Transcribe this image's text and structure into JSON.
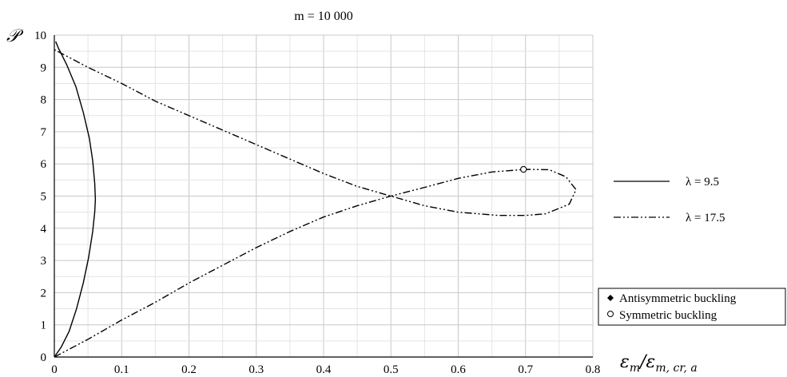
{
  "chart_data": {
    "type": "line",
    "title": "m = 10 000",
    "ylabel": "𝒫",
    "xlabel_main": "ε",
    "xlabel_sub1": "m",
    "xlabel_slash": "/ε",
    "xlabel_sub2": "m, cr, a",
    "xlim": [
      0,
      0.8
    ],
    "ylim": [
      0,
      10
    ],
    "xticks": [
      "0",
      "0.1",
      "0.2",
      "0.3",
      "0.4",
      "0.5",
      "0.6",
      "0.7",
      "0.8"
    ],
    "yticks": [
      "0",
      "1",
      "2",
      "3",
      "4",
      "5",
      "6",
      "7",
      "8",
      "9",
      "10"
    ],
    "grid": true,
    "series": [
      {
        "name": "λ = 9.5",
        "style": "solid",
        "points": [
          [
            0.0,
            0.0
          ],
          [
            0.01,
            0.3
          ],
          [
            0.022,
            0.8
          ],
          [
            0.033,
            1.5
          ],
          [
            0.043,
            2.3
          ],
          [
            0.051,
            3.1
          ],
          [
            0.057,
            3.9
          ],
          [
            0.06,
            4.5
          ],
          [
            0.061,
            4.9
          ],
          [
            0.06,
            5.4
          ],
          [
            0.057,
            6.1
          ],
          [
            0.052,
            6.8
          ],
          [
            0.043,
            7.6
          ],
          [
            0.032,
            8.4
          ],
          [
            0.018,
            9.1
          ],
          [
            0.006,
            9.6
          ],
          [
            0.002,
            9.8
          ]
        ]
      },
      {
        "name": "λ = 17.5",
        "style": "dashdotdot",
        "points": [
          [
            0.0,
            0.0
          ],
          [
            0.05,
            0.55
          ],
          [
            0.1,
            1.15
          ],
          [
            0.15,
            1.7
          ],
          [
            0.2,
            2.3
          ],
          [
            0.25,
            2.85
          ],
          [
            0.3,
            3.4
          ],
          [
            0.35,
            3.9
          ],
          [
            0.4,
            4.35
          ],
          [
            0.45,
            4.7
          ],
          [
            0.5,
            5.0
          ],
          [
            0.55,
            5.27
          ],
          [
            0.6,
            5.55
          ],
          [
            0.65,
            5.75
          ],
          [
            0.7,
            5.83
          ],
          [
            0.735,
            5.82
          ],
          [
            0.76,
            5.6
          ],
          [
            0.775,
            5.2
          ],
          [
            0.765,
            4.75
          ],
          [
            0.73,
            4.45
          ],
          [
            0.7,
            4.4
          ],
          [
            0.66,
            4.4
          ],
          [
            0.6,
            4.5
          ],
          [
            0.55,
            4.7
          ],
          [
            0.5,
            5.0
          ],
          [
            0.45,
            5.3
          ],
          [
            0.4,
            5.7
          ],
          [
            0.35,
            6.15
          ],
          [
            0.3,
            6.6
          ],
          [
            0.25,
            7.05
          ],
          [
            0.2,
            7.5
          ],
          [
            0.15,
            7.95
          ],
          [
            0.1,
            8.5
          ],
          [
            0.05,
            9.0
          ],
          [
            0.0,
            9.55
          ]
        ]
      }
    ],
    "markers": [
      {
        "name": "Symmetric buckling",
        "symbol": "circle",
        "x": 0.697,
        "y": 5.83
      }
    ],
    "marker_legend": [
      {
        "symbol": "diamond",
        "label": "Antisymmetric buckling"
      },
      {
        "symbol": "circle",
        "label": "Symmetric buckling"
      }
    ]
  }
}
